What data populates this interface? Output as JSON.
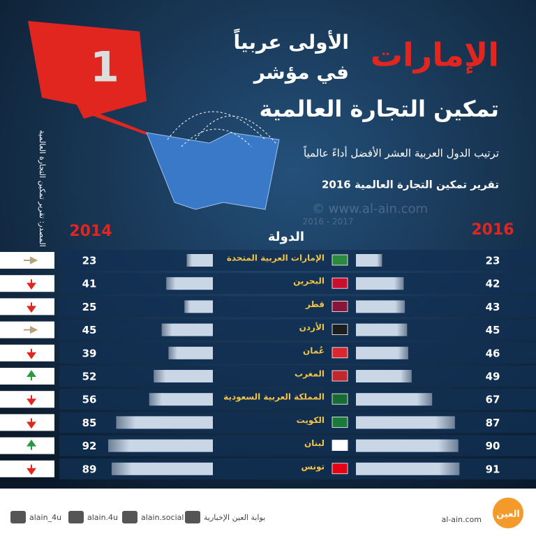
{
  "header": {
    "title_main": "الإمارات",
    "title_line2": "الأولى عربياً",
    "title_line3": "في مؤشر",
    "title_line4": "تمكين التجارة العالمية",
    "subtitle": "ترتيب الدول العربية العشر الأفضل أداءً عالمياً",
    "report": "تقرير تمكين التجارة العالمية  2016",
    "source": "المصدر: تقرير تمكين التجارة العالمية",
    "badge": "1",
    "watermark": "© www.al-ain.com",
    "watermark_years": "2016 - 2017"
  },
  "table": {
    "col_left": "2014",
    "col_mid": "الدولة",
    "col_right": "2016",
    "rows": [
      {
        "country": "الإمارات العربية المتحدة",
        "rank_2016": 23,
        "rank_2014": 23
      },
      {
        "country": "البحرين",
        "rank_2016": 42,
        "rank_2014": 41
      },
      {
        "country": "قطر",
        "rank_2016": 43,
        "rank_2014": 25
      },
      {
        "country": "الأردن",
        "rank_2016": 45,
        "rank_2014": 45
      },
      {
        "country": "عُمان",
        "rank_2016": 46,
        "rank_2014": 39
      },
      {
        "country": "المغرب",
        "rank_2016": 49,
        "rank_2014": 52
      },
      {
        "country": "المملكة العربية السعودية",
        "rank_2016": 67,
        "rank_2014": 56
      },
      {
        "country": "الكويت",
        "rank_2016": 87,
        "rank_2014": 85
      },
      {
        "country": "لبنان",
        "rank_2016": 90,
        "rank_2014": 92
      },
      {
        "country": "تونس",
        "rank_2016": 91,
        "rank_2014": 89
      }
    ]
  },
  "footer": {
    "twitter": "alain_4u",
    "instagram": "alain.4u",
    "facebook": "alain.social",
    "youtube": "بوابة العين الإخبارية",
    "site": "al-ain.com",
    "logo": "العين"
  }
}
